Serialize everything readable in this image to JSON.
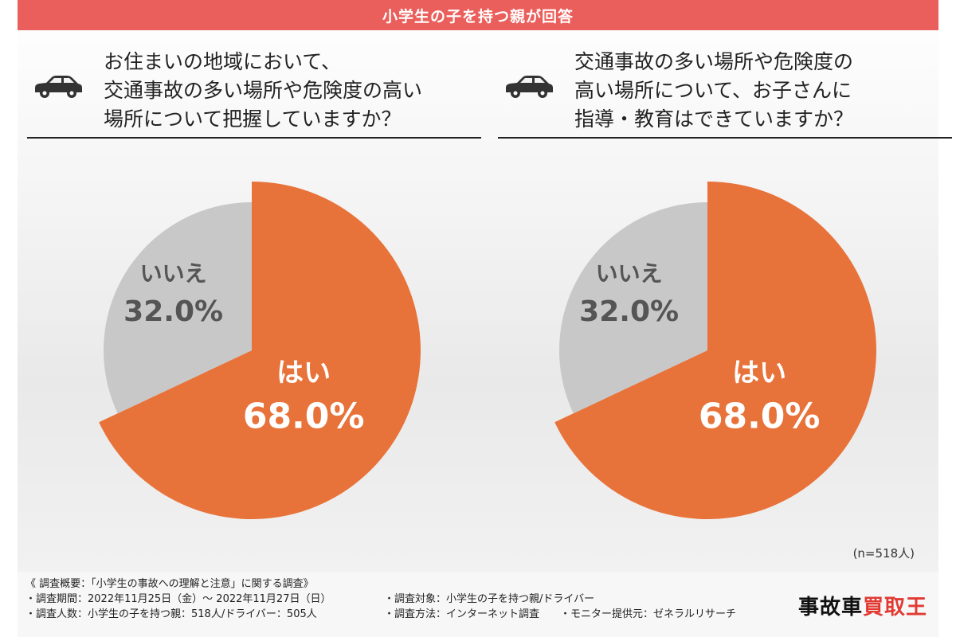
{
  "header": {
    "title": "小学生の子を持つ親が回答"
  },
  "questions": [
    {
      "text": "お住まいの地域において、\n交通事故の多い場所や危険度の高い\n場所について把握していますか？"
    },
    {
      "text": "交通事故の多い場所や危険度の\n高い場所について、お子さんに\n指導・教育はできていますか？"
    }
  ],
  "chart_data": [
    {
      "type": "pie",
      "title": "",
      "slices": [
        {
          "label": "はい",
          "value": 68.0,
          "display": "68.0%",
          "color": "#e8733a"
        },
        {
          "label": "いいえ",
          "value": 32.0,
          "display": "32.0%",
          "color": "#c8c8c8"
        }
      ]
    },
    {
      "type": "pie",
      "title": "",
      "slices": [
        {
          "label": "はい",
          "value": 68.0,
          "display": "68.0%",
          "color": "#e8733a"
        },
        {
          "label": "いいえ",
          "value": 32.0,
          "display": "32.0%",
          "color": "#c8c8c8"
        }
      ]
    }
  ],
  "sample_note": "(n=518人)",
  "footer": {
    "summary": "《 調査概要：「小学生の事故への理解と注意」に関する調査》",
    "period": "・調査期間：2022年11月25日（金）～ 2022年11月27日（日）",
    "count": "・調査人数：小学生の子を持つ親：518人/ドライバー：505人",
    "target": "・調査対象：小学生の子を持つ親/ドライバー",
    "method": "・調査方法：インターネット調査",
    "monitor": "・モニター提供元：ゼネラルリサーチ"
  },
  "logo": {
    "part1": "事故車",
    "part2": "買取王"
  },
  "icons": [
    "car-icon",
    "car-icon"
  ]
}
